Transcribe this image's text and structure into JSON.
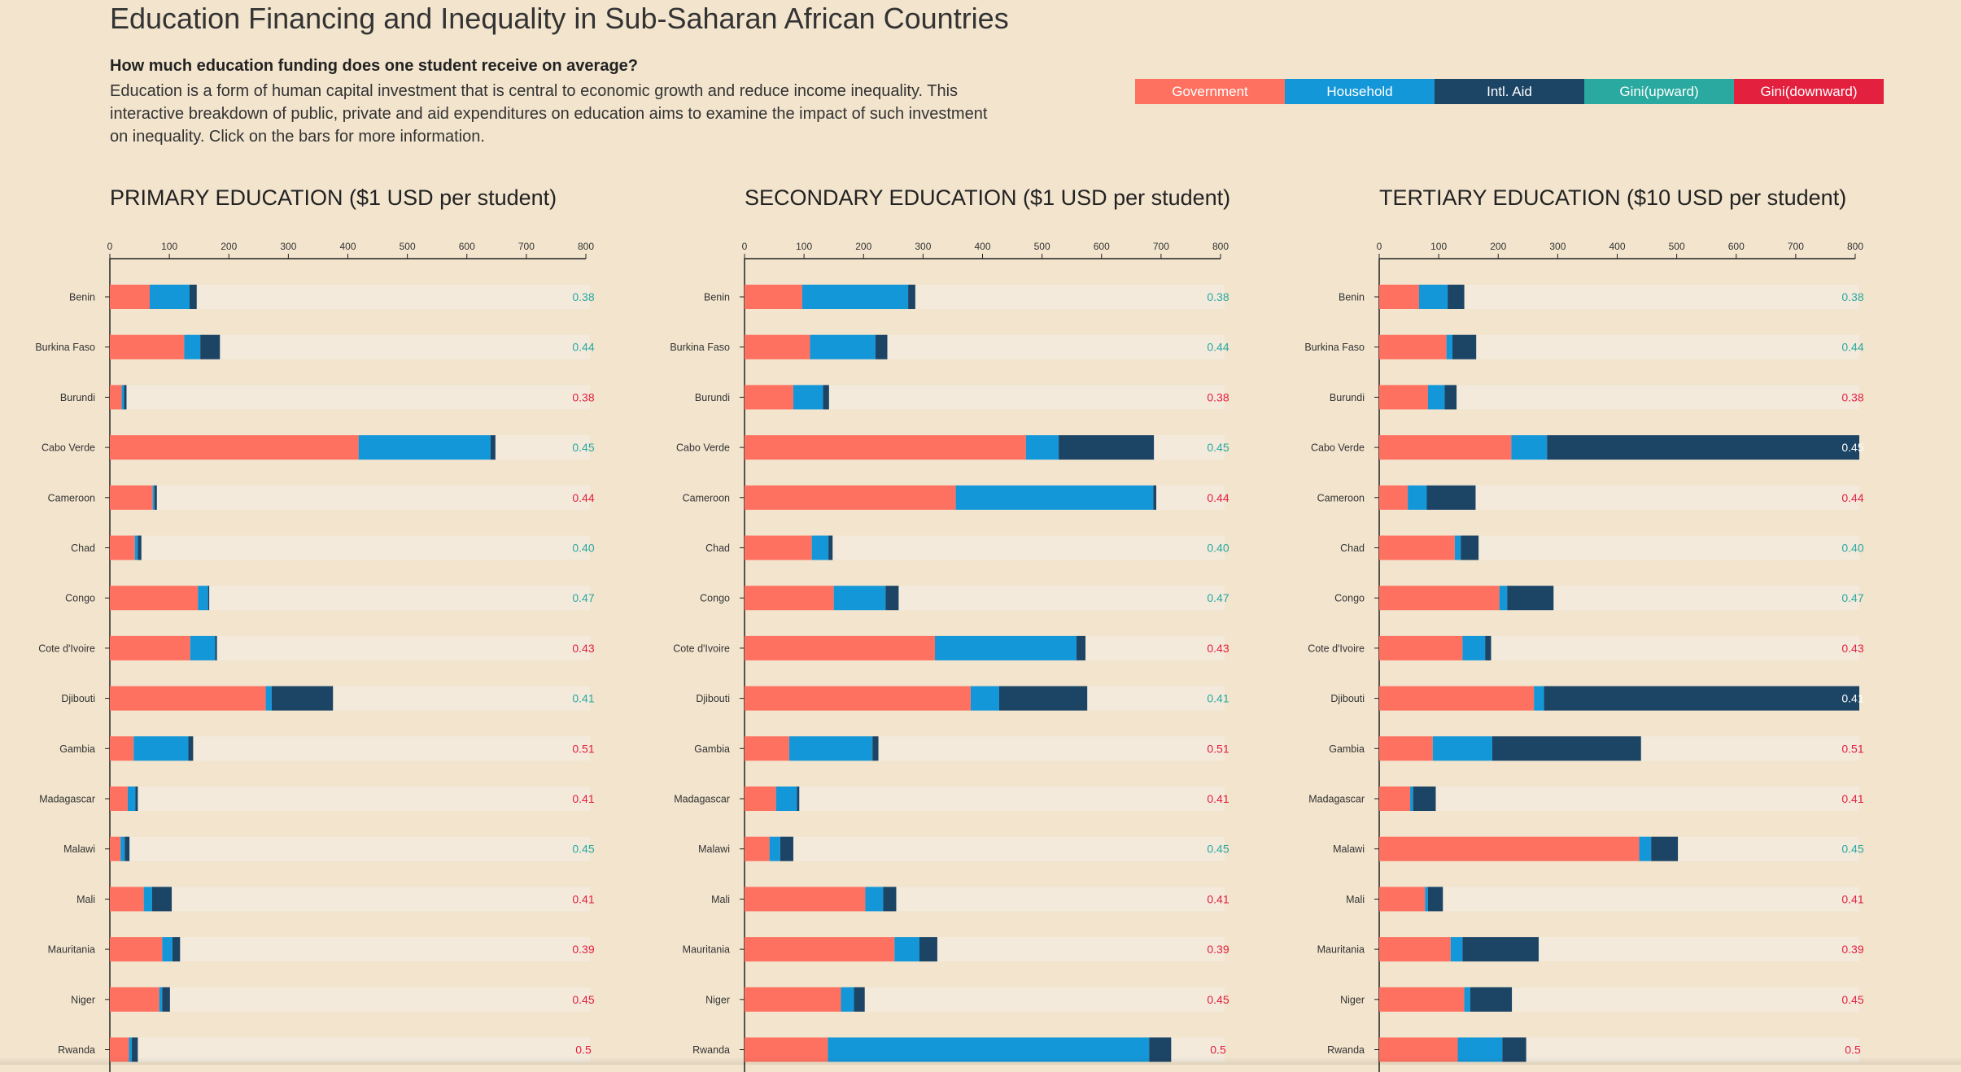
{
  "header": {
    "title": "Education Financing and Inequality in Sub-Saharan African Countries",
    "question": "How much education funding does one student receive on average?",
    "description": "Education is a form of human capital investment that is central to economic growth and reduce income inequality. This interactive breakdown of public, private and aid expenditures on education aims to examine the impact of such investment on inequality. Click on the bars for more information."
  },
  "legend": [
    {
      "label": "Government",
      "color": "#fe7160"
    },
    {
      "label": "Household",
      "color": "#1497d8"
    },
    {
      "label": "Intl. Aid",
      "color": "#1c4465"
    },
    {
      "label": "Gini(upward)",
      "color": "#2aa9a0"
    },
    {
      "label": "Gini(downward)",
      "color": "#e3203e"
    }
  ],
  "colors": {
    "government": "#fe7160",
    "household": "#1497d8",
    "aid": "#1c4465",
    "gini_up": "#2aa9a0",
    "gini_down": "#e3203e",
    "track": "#f3eadc"
  },
  "chart_data": [
    {
      "type": "bar",
      "stacked": true,
      "orientation": "horizontal",
      "title": "PRIMARY EDUCATION ($1 USD per student)",
      "xlim": [
        0,
        800
      ],
      "xticks": [
        0,
        100,
        200,
        300,
        400,
        500,
        600,
        700,
        800
      ],
      "categories": [
        "Benin",
        "Burkina Faso",
        "Burundi",
        "Cabo Verde",
        "Cameroon",
        "Chad",
        "Congo",
        "Cote d'Ivoire",
        "Djibouti",
        "Gambia",
        "Madagascar",
        "Malawi",
        "Mali",
        "Mauritania",
        "Niger",
        "Rwanda"
      ],
      "series": [
        {
          "name": "Government",
          "values": [
            67,
            125,
            20,
            418,
            72,
            42,
            148,
            135,
            262,
            40,
            30,
            18,
            57,
            88,
            83,
            32
          ]
        },
        {
          "name": "Household",
          "values": [
            67,
            27,
            4,
            222,
            3,
            5,
            17,
            42,
            10,
            92,
            13,
            7,
            14,
            17,
            5,
            5
          ]
        },
        {
          "name": "Intl. Aid",
          "values": [
            12,
            33,
            4,
            8,
            4,
            6,
            2,
            3,
            103,
            8,
            4,
            8,
            33,
            13,
            13,
            10
          ]
        }
      ],
      "gini": [
        "0.38",
        "0.44",
        "0.38",
        "0.45",
        "0.44",
        "0.40",
        "0.47",
        "0.43",
        "0.41",
        "0.51",
        "0.41",
        "0.45",
        "0.41",
        "0.39",
        "0.45",
        "0.5"
      ],
      "gini_direction": [
        "up",
        "up",
        "down",
        "up",
        "down",
        "up",
        "up",
        "down",
        "up",
        "down",
        "down",
        "up",
        "down",
        "down",
        "down",
        "down"
      ]
    },
    {
      "type": "bar",
      "stacked": true,
      "orientation": "horizontal",
      "title": "SECONDARY EDUCATION ($1 USD per student)",
      "xlim": [
        0,
        800
      ],
      "xticks": [
        0,
        100,
        200,
        300,
        400,
        500,
        600,
        700,
        800
      ],
      "categories": [
        "Benin",
        "Burkina Faso",
        "Burundi",
        "Cabo Verde",
        "Cameroon",
        "Chad",
        "Congo",
        "Cote d'Ivoire",
        "Djibouti",
        "Gambia",
        "Madagascar",
        "Malawi",
        "Mali",
        "Mauritania",
        "Niger",
        "Rwanda"
      ],
      "series": [
        {
          "name": "Government",
          "values": [
            97,
            110,
            82,
            473,
            355,
            113,
            150,
            320,
            380,
            75,
            53,
            42,
            203,
            252,
            162,
            140
          ]
        },
        {
          "name": "Household",
          "values": [
            178,
            110,
            50,
            55,
            332,
            28,
            87,
            238,
            48,
            140,
            35,
            18,
            30,
            42,
            22,
            540
          ]
        },
        {
          "name": "Intl. Aid",
          "values": [
            12,
            20,
            10,
            160,
            5,
            7,
            22,
            15,
            148,
            10,
            4,
            22,
            22,
            30,
            18,
            37
          ]
        }
      ],
      "gini": [
        "0.38",
        "0.44",
        "0.38",
        "0.45",
        "0.44",
        "0.40",
        "0.47",
        "0.43",
        "0.41",
        "0.51",
        "0.41",
        "0.45",
        "0.41",
        "0.39",
        "0.45",
        "0.5"
      ],
      "gini_direction": [
        "up",
        "up",
        "down",
        "up",
        "down",
        "up",
        "up",
        "down",
        "up",
        "down",
        "down",
        "up",
        "down",
        "down",
        "down",
        "down"
      ]
    },
    {
      "type": "bar",
      "stacked": true,
      "orientation": "horizontal",
      "title": "TERTIARY EDUCATION ($10 USD per student)",
      "xlim": [
        0,
        800
      ],
      "xticks": [
        0,
        100,
        200,
        300,
        400,
        500,
        600,
        700,
        800
      ],
      "categories": [
        "Benin",
        "Burkina Faso",
        "Burundi",
        "Cabo Verde",
        "Cameroon",
        "Chad",
        "Congo",
        "Cote d'Ivoire",
        "Djibouti",
        "Gambia",
        "Madagascar",
        "Malawi",
        "Mali",
        "Mauritania",
        "Niger",
        "Rwanda"
      ],
      "series": [
        {
          "name": "Government",
          "values": [
            67,
            113,
            82,
            222,
            48,
            127,
            202,
            140,
            260,
            90,
            52,
            437,
            77,
            120,
            143,
            132
          ]
        },
        {
          "name": "Household",
          "values": [
            48,
            10,
            28,
            60,
            32,
            10,
            13,
            38,
            17,
            100,
            5,
            20,
            5,
            20,
            10,
            75
          ]
        },
        {
          "name": "Intl. Aid",
          "values": [
            28,
            40,
            20,
            565,
            82,
            30,
            78,
            10,
            570,
            250,
            38,
            45,
            25,
            128,
            70,
            40
          ]
        }
      ],
      "gini": [
        "0.38",
        "0.44",
        "0.38",
        "0.45",
        "0.44",
        "0.40",
        "0.47",
        "0.43",
        "0.41",
        "0.51",
        "0.41",
        "0.45",
        "0.41",
        "0.39",
        "0.45",
        "0.5"
      ],
      "gini_direction": [
        "up",
        "up",
        "down",
        "up",
        "down",
        "up",
        "up",
        "down",
        "up",
        "down",
        "down",
        "up",
        "down",
        "down",
        "down",
        "down"
      ]
    }
  ]
}
